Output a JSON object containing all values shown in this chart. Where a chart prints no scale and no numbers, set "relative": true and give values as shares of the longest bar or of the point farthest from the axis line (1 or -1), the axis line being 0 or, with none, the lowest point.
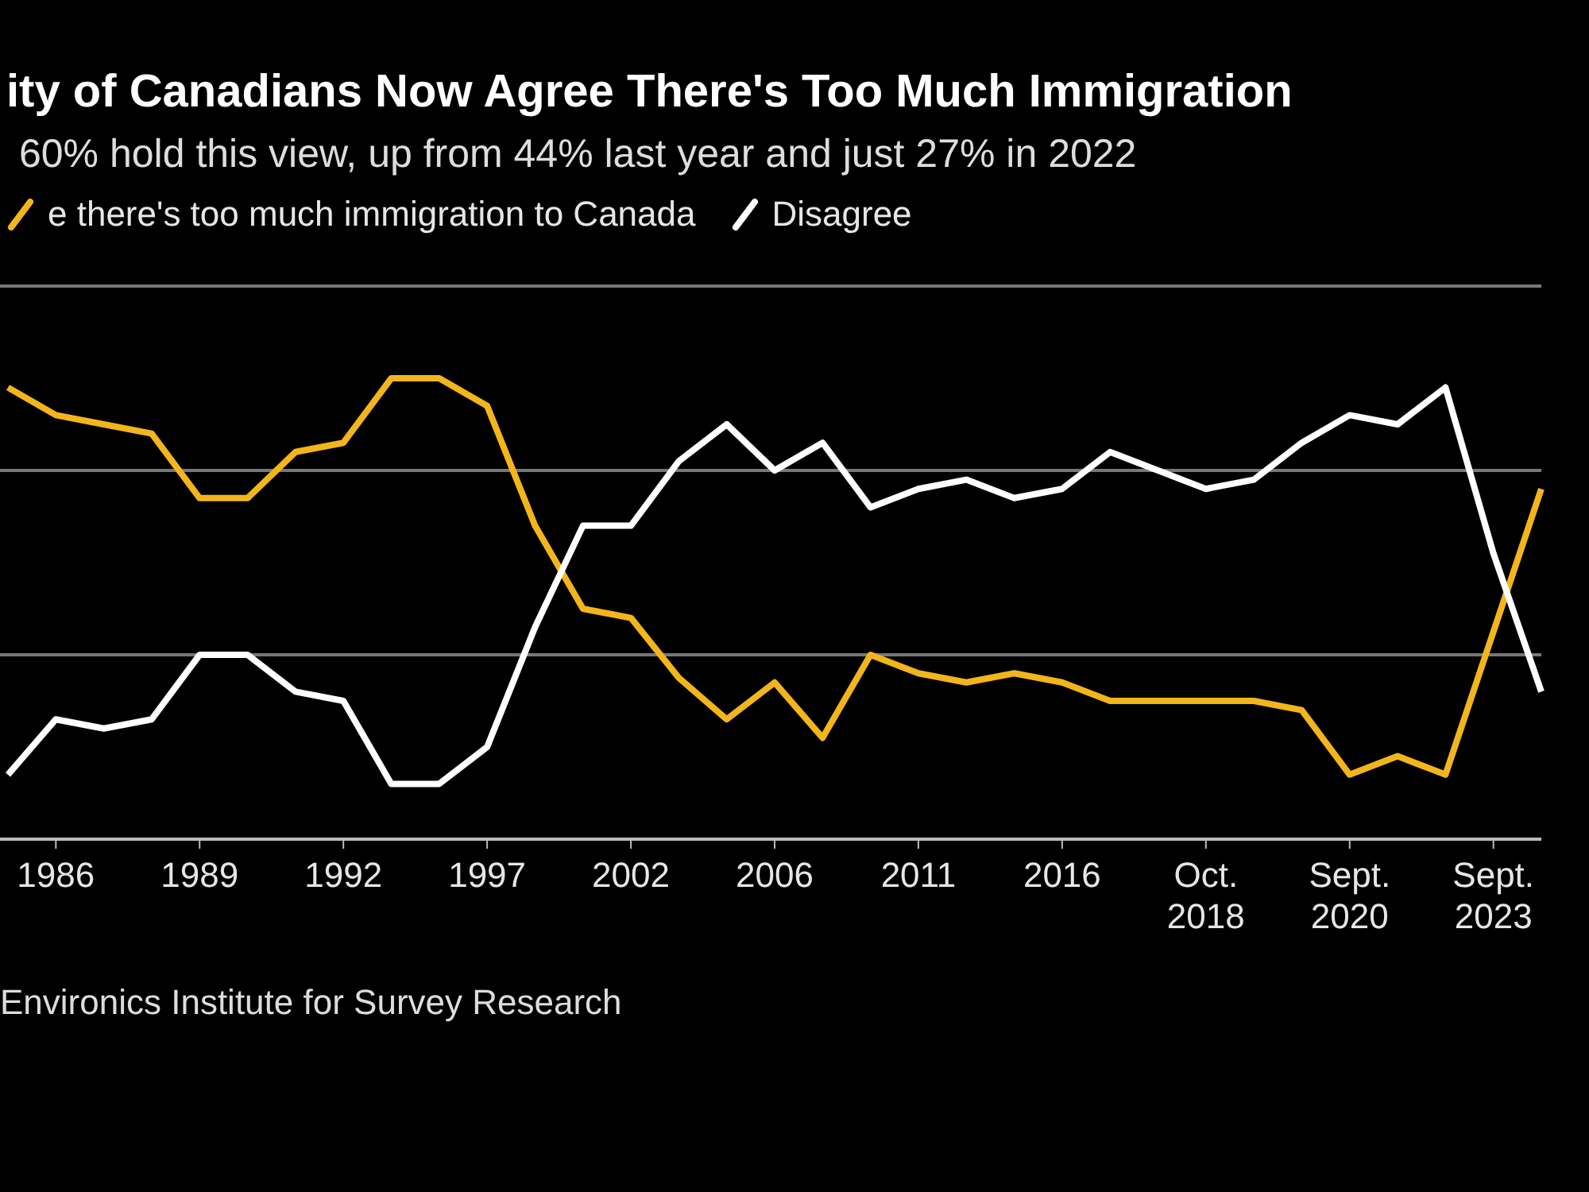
{
  "chart_data": {
    "type": "line",
    "title": "ity of Canadians Now Agree There's Too Much Immigration",
    "subtitle": "60% hold this view, up from 44% last year and just 27% in 2022",
    "categories": [
      null,
      "1986",
      null,
      null,
      "1989",
      null,
      null,
      "1992",
      null,
      null,
      "1997",
      null,
      null,
      "2002",
      null,
      null,
      "2006",
      null,
      null,
      "2011",
      null,
      null,
      "2016",
      null,
      null,
      "Oct. 2018",
      null,
      null,
      "Sept. 2020",
      null,
      null,
      "Sept. 2023",
      null
    ],
    "series": [
      {
        "name": "e there's too much immigration to Canada",
        "color": "#f2b51c",
        "values": [
          0.98,
          0.92,
          0.9,
          0.88,
          0.74,
          0.74,
          0.84,
          0.86,
          1,
          1,
          0.94,
          0.68,
          0.5,
          0.48,
          0.35,
          0.26,
          0.34,
          0.22,
          0.4,
          0.36,
          0.34,
          0.36,
          0.34,
          0.3,
          0.3,
          0.3,
          0.3,
          0.28,
          0.14,
          0.18,
          0.14,
          0.45,
          0.76
        ]
      },
      {
        "name": "Disagree",
        "color": "#ffffff",
        "values": [
          0.14,
          0.26,
          0.24,
          0.26,
          0.4,
          0.4,
          0.32,
          0.3,
          0.12,
          0.12,
          0.2,
          0.46,
          0.68,
          0.68,
          0.82,
          0.9,
          0.8,
          0.86,
          0.72,
          0.76,
          0.78,
          0.74,
          0.76,
          0.84,
          0.8,
          0.76,
          0.78,
          0.86,
          0.92,
          0.9,
          0.98,
          0.62,
          0.32
        ]
      }
    ],
    "relative": true,
    "legend": "top left",
    "ref_lines": [
      {
        "axis": "y",
        "value": 0.4,
        "color": "#777777"
      },
      {
        "axis": "y",
        "value": 0.8,
        "color": "#777777"
      },
      {
        "axis": "y",
        "value": 1.2,
        "color": "#777777"
      }
    ],
    "annotations": [
      "Environics Institute for Survey Research"
    ]
  }
}
